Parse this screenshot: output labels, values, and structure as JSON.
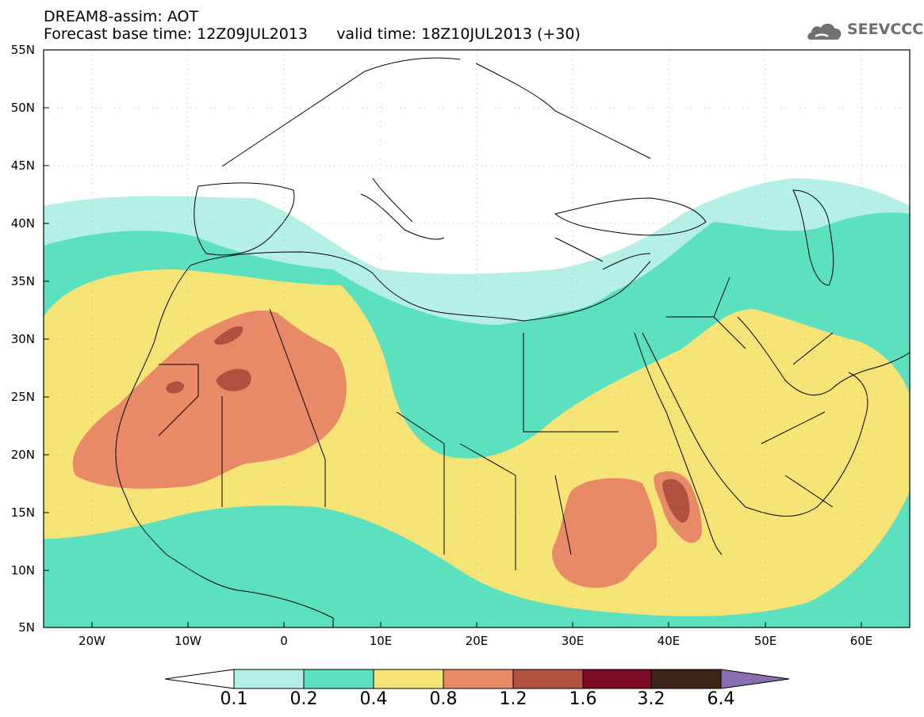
{
  "title": {
    "line1": "DREAM8-assim: AOT",
    "line2": "Forecast base time: 12Z09JUL2013      valid time: 18Z10JUL2013 (+30)"
  },
  "logo": {
    "text": "SEEVCCC",
    "icon": "cloud-icon",
    "color": "#707070"
  },
  "map": {
    "lat_labels": [
      "55N",
      "50N",
      "45N",
      "40N",
      "35N",
      "30N",
      "25N",
      "20N",
      "15N",
      "10N",
      "5N"
    ],
    "lon_labels": [
      "20W",
      "10W",
      "0",
      "10E",
      "20E",
      "30E",
      "40E",
      "50E",
      "60E"
    ]
  },
  "colorbar": {
    "labels": [
      "0.1",
      "0.2",
      "0.4",
      "0.8",
      "1.2",
      "1.6",
      "3.2",
      "6.4"
    ],
    "colors": [
      "#b4f0e6",
      "#5be1bf",
      "#f7e477",
      "#e88a68",
      "#b0503e",
      "#7e0a25",
      "#3e2416",
      "#8a6fb0"
    ]
  }
}
